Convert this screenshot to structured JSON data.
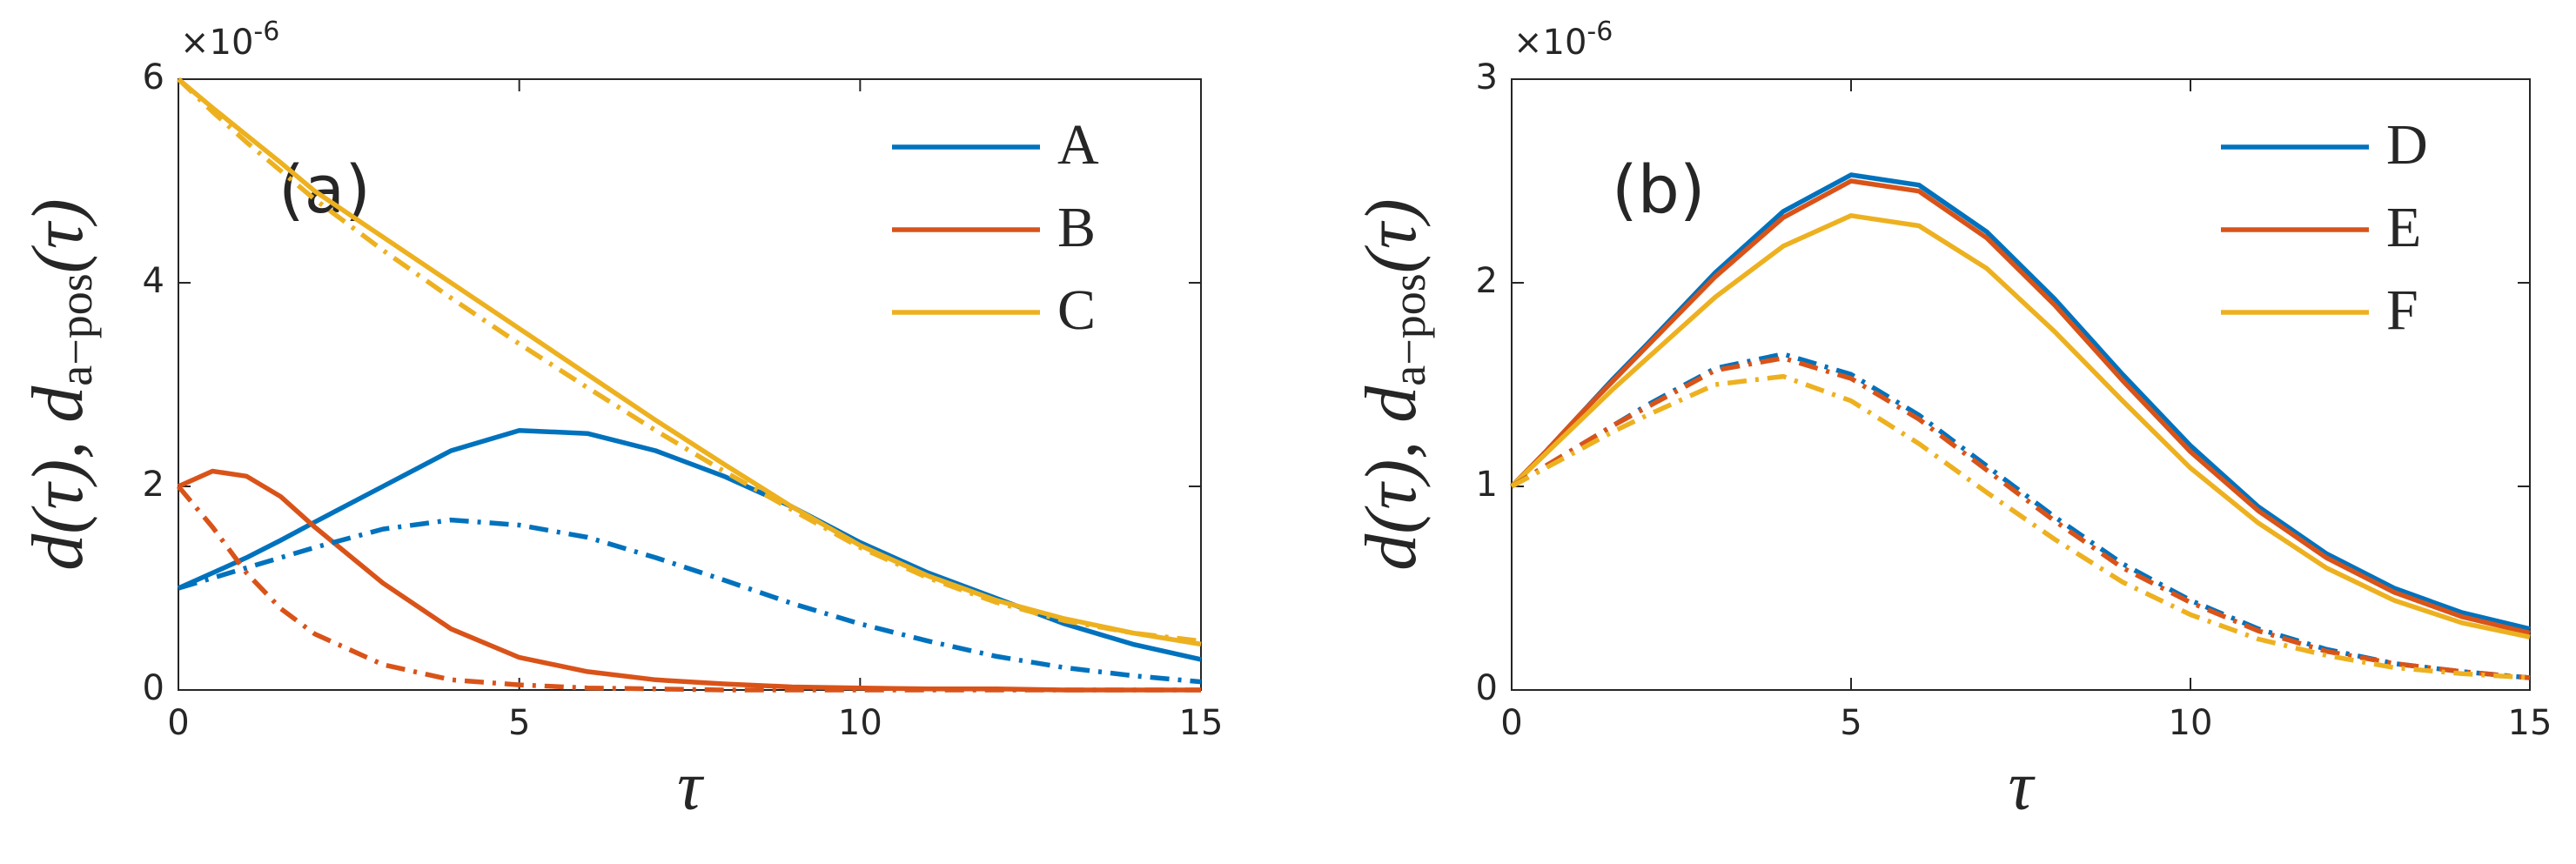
{
  "chart_data": [
    {
      "type": "line",
      "annotation": "(a)",
      "xlabel": "τ",
      "ylabel": [
        "d(τ),  d",
        "a−pos",
        "(τ)"
      ],
      "y_multiplier": [
        "×10",
        "-6"
      ],
      "x": [
        0,
        0.5,
        1,
        1.5,
        2,
        3,
        4,
        5,
        6,
        7,
        8,
        9,
        10,
        11,
        12,
        13,
        14,
        15
      ],
      "xlim": [
        0,
        15
      ],
      "xticks": [
        0,
        5,
        10,
        15
      ],
      "ylim": [
        0,
        6
      ],
      "yticks": [
        0,
        2,
        4,
        6
      ],
      "legend": "upper right",
      "series": [
        {
          "name": "A",
          "color": "#0072BD",
          "style": "solid",
          "values": [
            1.0,
            1.15,
            1.3,
            1.47,
            1.65,
            2.0,
            2.35,
            2.55,
            2.52,
            2.35,
            2.1,
            1.8,
            1.45,
            1.15,
            0.9,
            0.65,
            0.45,
            0.3
          ]
        },
        {
          "name": "B",
          "color": "#D95319",
          "style": "solid",
          "values": [
            2.0,
            2.15,
            2.1,
            1.9,
            1.6,
            1.05,
            0.6,
            0.32,
            0.18,
            0.1,
            0.06,
            0.03,
            0.02,
            0.01,
            0.01,
            0,
            0,
            0
          ]
        },
        {
          "name": "C",
          "color": "#EDB120",
          "style": "solid",
          "values": [
            6.0,
            5.72,
            5.45,
            5.18,
            4.9,
            4.45,
            4.0,
            3.55,
            3.1,
            2.65,
            2.22,
            1.8,
            1.42,
            1.12,
            0.88,
            0.7,
            0.56,
            0.45
          ]
        },
        {
          "color": "#0072BD",
          "style": "dashdot",
          "values": [
            1.0,
            1.1,
            1.2,
            1.3,
            1.4,
            1.58,
            1.67,
            1.62,
            1.5,
            1.3,
            1.08,
            0.85,
            0.65,
            0.48,
            0.33,
            0.22,
            0.14,
            0.08
          ]
        },
        {
          "color": "#D95319",
          "style": "dashdot",
          "values": [
            2.0,
            1.6,
            1.15,
            0.8,
            0.55,
            0.25,
            0.1,
            0.05,
            0.02,
            0.01,
            0,
            0,
            0,
            0,
            0,
            0,
            0,
            0
          ]
        },
        {
          "color": "#EDB120",
          "style": "dashdot",
          "values": [
            6.0,
            5.68,
            5.38,
            5.1,
            4.82,
            4.32,
            3.85,
            3.4,
            2.97,
            2.55,
            2.15,
            1.77,
            1.4,
            1.1,
            0.86,
            0.68,
            0.56,
            0.48
          ]
        }
      ]
    },
    {
      "type": "line",
      "annotation": "(b)",
      "xlabel": "τ",
      "ylabel": [
        "d(τ),  d",
        "a−pos",
        "(τ)"
      ],
      "y_multiplier": [
        "×10",
        "-6"
      ],
      "x": [
        0,
        0.5,
        1,
        1.5,
        2,
        3,
        4,
        5,
        6,
        7,
        8,
        9,
        10,
        11,
        12,
        13,
        14,
        15
      ],
      "xlim": [
        0,
        15
      ],
      "xticks": [
        0,
        5,
        10,
        15
      ],
      "ylim": [
        0,
        3
      ],
      "yticks": [
        0,
        1,
        2,
        3
      ],
      "legend": "upper right",
      "series": [
        {
          "name": "D",
          "color": "#0072BD",
          "style": "solid",
          "values": [
            1.0,
            1.17,
            1.35,
            1.53,
            1.7,
            2.05,
            2.35,
            2.53,
            2.48,
            2.25,
            1.92,
            1.55,
            1.2,
            0.9,
            0.67,
            0.5,
            0.38,
            0.3
          ]
        },
        {
          "name": "E",
          "color": "#D95319",
          "style": "solid",
          "values": [
            1.0,
            1.17,
            1.35,
            1.52,
            1.69,
            2.03,
            2.32,
            2.5,
            2.45,
            2.22,
            1.89,
            1.52,
            1.17,
            0.88,
            0.65,
            0.48,
            0.36,
            0.28
          ]
        },
        {
          "name": "F",
          "color": "#EDB120",
          "style": "solid",
          "values": [
            1.0,
            1.16,
            1.32,
            1.48,
            1.63,
            1.93,
            2.18,
            2.33,
            2.28,
            2.07,
            1.76,
            1.42,
            1.09,
            0.82,
            0.6,
            0.44,
            0.33,
            0.26
          ]
        },
        {
          "color": "#0072BD",
          "style": "dashdot",
          "values": [
            1.0,
            1.1,
            1.2,
            1.3,
            1.4,
            1.58,
            1.65,
            1.55,
            1.35,
            1.1,
            0.85,
            0.62,
            0.44,
            0.3,
            0.2,
            0.13,
            0.09,
            0.06
          ]
        },
        {
          "color": "#D95319",
          "style": "dashdot",
          "values": [
            1.0,
            1.1,
            1.2,
            1.3,
            1.39,
            1.57,
            1.63,
            1.53,
            1.33,
            1.08,
            0.83,
            0.6,
            0.43,
            0.29,
            0.19,
            0.13,
            0.09,
            0.06
          ]
        },
        {
          "color": "#EDB120",
          "style": "dashdot",
          "values": [
            1.0,
            1.09,
            1.18,
            1.27,
            1.35,
            1.5,
            1.54,
            1.42,
            1.21,
            0.97,
            0.74,
            0.53,
            0.37,
            0.25,
            0.17,
            0.11,
            0.08,
            0.06
          ]
        }
      ]
    }
  ]
}
